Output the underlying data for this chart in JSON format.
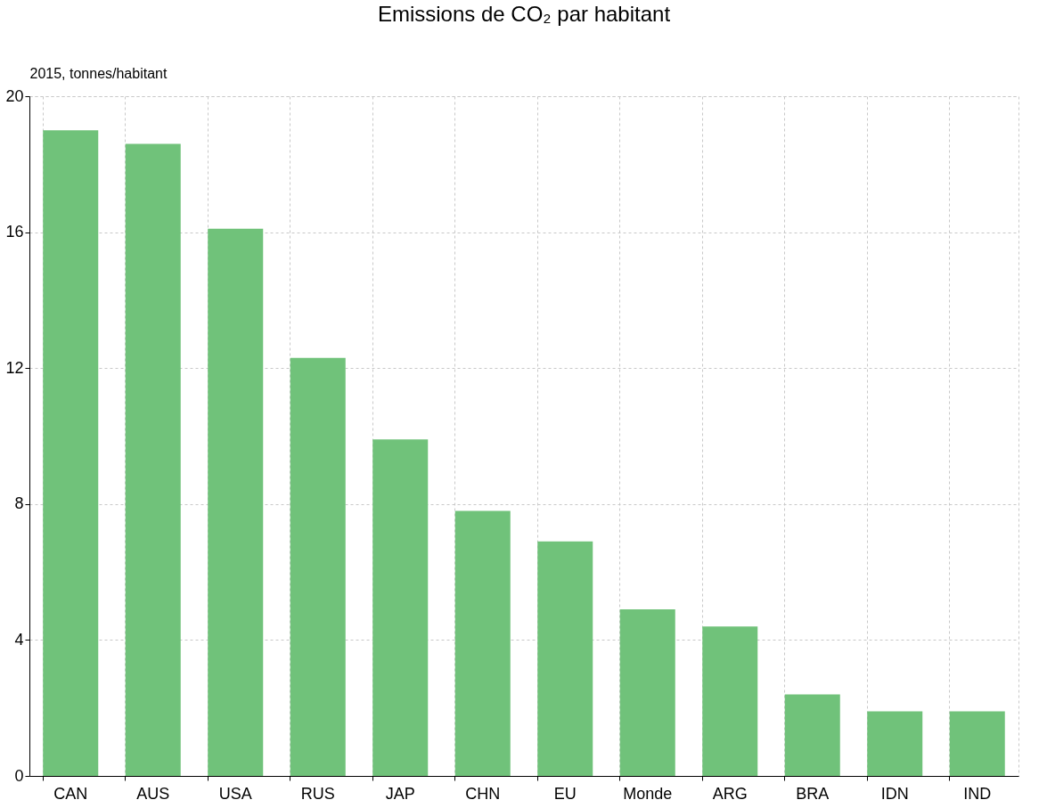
{
  "chart_data": {
    "type": "bar",
    "title": "Emissions de CO₂ par habitant",
    "ylabel": "2015, tonnes/habitant",
    "categories": [
      "CAN",
      "AUS",
      "USA",
      "RUS",
      "JAP",
      "CHN",
      "EU",
      "Monde",
      "ARG",
      "BRA",
      "IDN",
      "IND"
    ],
    "values": [
      19.0,
      18.6,
      16.1,
      12.3,
      9.9,
      7.8,
      6.9,
      4.9,
      4.4,
      2.4,
      1.9,
      1.9
    ],
    "color": "#70c27a",
    "ylim": [
      0,
      20
    ],
    "yticks": [
      0,
      4,
      8,
      12,
      16,
      20
    ],
    "grid": true
  }
}
